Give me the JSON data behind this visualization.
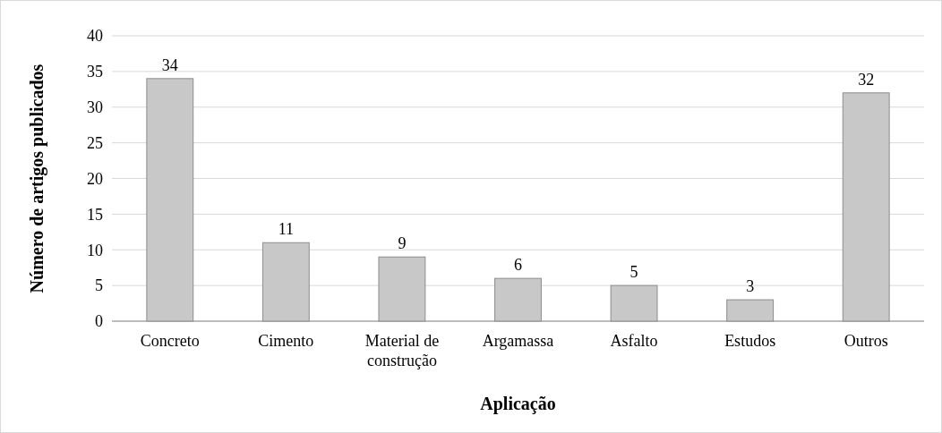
{
  "chart_data": {
    "type": "bar",
    "xlabel": "Aplicação",
    "ylabel": "Número de artigos publicados",
    "categories": [
      "Concreto",
      "Cimento",
      "Material de construção",
      "Argamassa",
      "Asfalto",
      "Estudos",
      "Outros"
    ],
    "values": [
      34,
      11,
      9,
      6,
      5,
      3,
      32
    ],
    "color": "#c8c8c8",
    "ylim": [
      0,
      40
    ],
    "yticks": [
      0,
      5,
      10,
      15,
      20,
      25,
      30,
      35,
      40
    ],
    "grid": "y",
    "data_labels": true
  }
}
